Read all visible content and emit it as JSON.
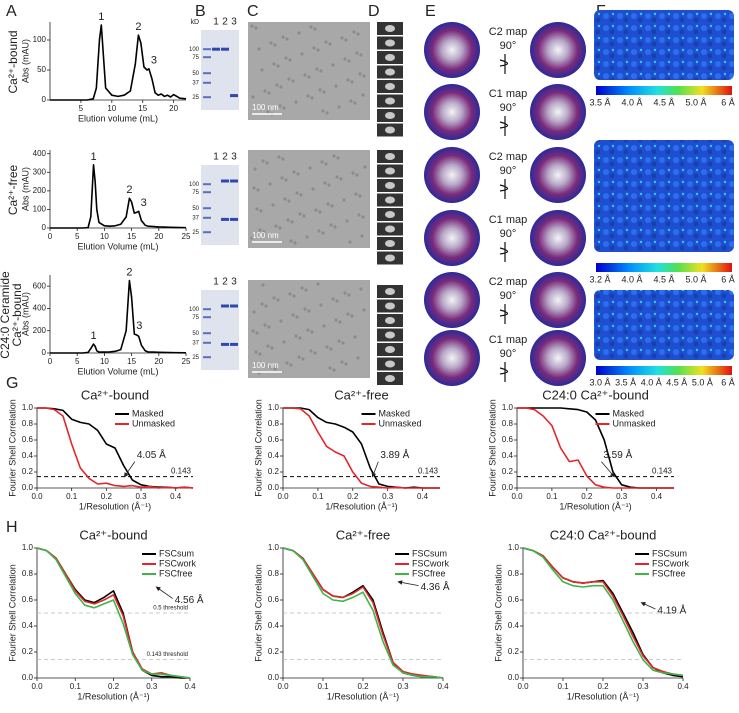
{
  "panel_letters": [
    "A",
    "B",
    "C",
    "D",
    "E",
    "F",
    "G",
    "H"
  ],
  "row_labels": [
    [
      "Ca²⁺-bound"
    ],
    [
      "Ca²⁺-free"
    ],
    [
      "C24:0 Ceramide",
      "Ca²⁺-bound"
    ]
  ],
  "gels": [
    {
      "unit": "kD",
      "lanes": [
        "1",
        "2",
        "3"
      ],
      "markers": [
        "100",
        "75",
        "50",
        "37",
        "25"
      ]
    },
    {
      "lanes": [
        "1",
        "2",
        "3"
      ],
      "markers": [
        "100",
        "75",
        "50",
        "37",
        "25"
      ]
    },
    {
      "lanes": [
        "1",
        "2",
        "3"
      ],
      "markers": [
        "100",
        "75",
        "50",
        "37",
        "25"
      ]
    }
  ],
  "micrograph_scale_bars": [
    "100 nm",
    "100 nm",
    "100 nm"
  ],
  "map_views": [
    {
      "symmetry": "C2 map",
      "rotation": "90°"
    },
    {
      "symmetry": "C1 map",
      "rotation": "90°"
    },
    {
      "symmetry": "C2 map",
      "rotation": "90°"
    },
    {
      "symmetry": "C1 map",
      "rotation": "90°"
    },
    {
      "symmetry": "C2 map",
      "rotation": "90°"
    },
    {
      "symmetry": "C1 map",
      "rotation": "90°"
    }
  ],
  "colorbars": [
    [
      "3.5 Å",
      "4.0 Å",
      "4.5 Å",
      "5.0 Å",
      "6 Å"
    ],
    [
      "3.2 Å",
      "4.0 Å",
      "4.5 Å",
      "5.0 Å",
      "6 Å"
    ],
    [
      "3.0 Å",
      "3.5 Å",
      "4.0 Å",
      "4.5 Å",
      "5.0 Å",
      "6 Å"
    ]
  ],
  "chart_data": [
    {
      "type": "line",
      "xlabel": "Elution volume (mL)",
      "ylabel": "Abs (mAU)",
      "xlim": [
        0,
        22
      ],
      "xticks": [
        5,
        10,
        15,
        20
      ],
      "ylim": [
        0,
        130
      ],
      "yticks": [
        0,
        50,
        100
      ],
      "x": [
        0,
        2,
        4,
        6,
        7,
        7.5,
        8,
        8.3,
        8.6,
        9,
        10,
        11,
        12,
        13,
        13.8,
        14.3,
        14.7,
        15.2,
        15.7,
        16,
        16.5,
        17,
        17.5,
        18,
        18.5,
        19,
        19.5,
        20,
        21,
        22
      ],
      "series": [
        {
          "color": "#000000",
          "values": [
            0,
            0,
            0,
            0,
            2,
            20,
            100,
            125,
            80,
            20,
            8,
            6,
            8,
            15,
            60,
            108,
            95,
            55,
            50,
            52,
            35,
            12,
            8,
            10,
            6,
            8,
            5,
            9,
            3,
            2
          ]
        }
      ],
      "peak_labels": [
        "1",
        "2",
        "3"
      ]
    },
    {
      "type": "line",
      "xlabel": "Elution Volume (mL)",
      "ylabel": "Abs (mAU)",
      "xlim": [
        0,
        25
      ],
      "xticks": [
        0,
        5,
        10,
        15,
        20,
        25
      ],
      "ylim": [
        0,
        420
      ],
      "yticks": [
        0,
        100,
        200,
        300,
        400
      ],
      "x": [
        0,
        2,
        4,
        6,
        7,
        7.5,
        8,
        8.3,
        8.6,
        9,
        10,
        11,
        12,
        13,
        14,
        14.6,
        15,
        15.5,
        16,
        16.3,
        16.8,
        17.5,
        18,
        19,
        20,
        21,
        22,
        23,
        25
      ],
      "series": [
        {
          "color": "#000000",
          "values": [
            0,
            0,
            0,
            0,
            2,
            60,
            340,
            250,
            100,
            30,
            12,
            10,
            12,
            20,
            60,
            160,
            140,
            80,
            85,
            90,
            40,
            15,
            10,
            8,
            6,
            5,
            4,
            3,
            2
          ]
        }
      ],
      "peak_labels": [
        "1",
        "2",
        "3"
      ]
    },
    {
      "type": "line",
      "xlabel": "Elution Volume (mL)",
      "ylabel": "Abs (mAU)",
      "xlim": [
        0,
        25
      ],
      "xticks": [
        0,
        5,
        10,
        15,
        20,
        25
      ],
      "ylim": [
        0,
        700
      ],
      "yticks": [
        0,
        200,
        400,
        600
      ],
      "x": [
        0,
        2,
        4,
        6,
        7,
        7.5,
        8,
        8.3,
        8.6,
        9,
        10,
        11,
        12,
        13,
        14,
        14.6,
        15,
        15.5,
        16,
        16.3,
        16.8,
        17.5,
        18,
        19,
        20,
        21,
        22,
        23,
        25
      ],
      "series": [
        {
          "color": "#000000",
          "values": [
            0,
            0,
            0,
            0,
            5,
            40,
            80,
            60,
            20,
            8,
            8,
            10,
            15,
            30,
            200,
            650,
            500,
            170,
            160,
            150,
            70,
            20,
            10,
            8,
            6,
            5,
            4,
            3,
            2
          ]
        }
      ],
      "peak_labels": [
        "1",
        "2",
        "3"
      ]
    },
    {
      "type": "line",
      "title": "Ca²⁺-bound",
      "xlabel": "1/Resolution (Å⁻¹)",
      "ylabel": "Fourier Shell Correlation",
      "xlim": [
        0,
        0.45
      ],
      "xticks": [
        {
          "value": 0,
          "label": "0.0"
        },
        0.1,
        0.2,
        0.3,
        0.4
      ],
      "ylim": [
        0,
        1
      ],
      "yticks": [
        {
          "value": 0,
          "label": "0.0"
        },
        0.2,
        0.4,
        0.6,
        0.8,
        {
          "value": 1,
          "label": "1.0"
        }
      ],
      "x": [
        0,
        0.025,
        0.05,
        0.075,
        0.1,
        0.125,
        0.15,
        0.175,
        0.2,
        0.225,
        0.25,
        0.275,
        0.3,
        0.325,
        0.35,
        0.375,
        0.4,
        0.425,
        0.45
      ],
      "series": [
        {
          "name": "Masked",
          "color": "#000000",
          "values": [
            1,
            1,
            0.99,
            0.97,
            0.86,
            0.82,
            0.8,
            0.72,
            0.55,
            0.5,
            0.28,
            0.1,
            0.04,
            0.02,
            0.01,
            0.01,
            0,
            0.01,
            0
          ]
        },
        {
          "name": "Unmasked",
          "color": "#e3262b",
          "values": [
            1,
            1,
            0.98,
            0.9,
            0.55,
            0.25,
            0.12,
            0.05,
            0.06,
            0.03,
            0.02,
            0.03,
            0.01,
            0.02,
            0,
            0.01,
            0,
            0.01,
            0
          ]
        }
      ],
      "threshold": 0.143,
      "annotation": "4.05 Å"
    },
    {
      "type": "line",
      "title": "Ca²⁺-free",
      "xlabel": "1/Resolution (Å⁻¹)",
      "ylabel": "Fourier Shell Correlation",
      "xlim": [
        0,
        0.45
      ],
      "xticks": [
        {
          "value": 0,
          "label": "0.0"
        },
        0.1,
        0.2,
        0.3,
        0.4
      ],
      "ylim": [
        0,
        1
      ],
      "yticks": [
        {
          "value": 0,
          "label": "0.0"
        },
        0.2,
        0.4,
        0.6,
        0.8,
        {
          "value": 1,
          "label": "1.0"
        }
      ],
      "x": [
        0,
        0.025,
        0.05,
        0.075,
        0.1,
        0.125,
        0.15,
        0.175,
        0.2,
        0.225,
        0.25,
        0.275,
        0.3,
        0.325,
        0.35,
        0.375,
        0.4,
        0.425,
        0.45
      ],
      "series": [
        {
          "name": "Masked",
          "color": "#000000",
          "values": [
            1,
            1,
            1,
            0.98,
            0.88,
            0.82,
            0.8,
            0.76,
            0.7,
            0.55,
            0.25,
            0.05,
            0.02,
            0.01,
            0,
            0.01,
            0,
            0,
            0
          ]
        },
        {
          "name": "Unmasked",
          "color": "#e3262b",
          "values": [
            1,
            1,
            0.99,
            0.9,
            0.7,
            0.52,
            0.45,
            0.4,
            0.2,
            0.06,
            0.02,
            0.01,
            0,
            0.01,
            0,
            0,
            0,
            0,
            0
          ]
        }
      ],
      "threshold": 0.143,
      "annotation": "3.89 Å"
    },
    {
      "type": "line",
      "title": "C24:0 Ca²⁺-bound",
      "xlabel": "1/Resolution (Å⁻¹)",
      "ylabel": "Fourier Shell Correlation",
      "xlim": [
        0,
        0.45
      ],
      "xticks": [
        {
          "value": 0,
          "label": "0.0"
        },
        0.1,
        0.2,
        0.3,
        0.4
      ],
      "ylim": [
        0,
        1
      ],
      "yticks": [
        {
          "value": 0,
          "label": "0.0"
        },
        0.2,
        0.4,
        0.6,
        0.8,
        {
          "value": 1,
          "label": "1.0"
        }
      ],
      "x": [
        0,
        0.025,
        0.05,
        0.075,
        0.1,
        0.125,
        0.15,
        0.175,
        0.2,
        0.225,
        0.25,
        0.275,
        0.3,
        0.325,
        0.35,
        0.375,
        0.4,
        0.425,
        0.45
      ],
      "series": [
        {
          "name": "Masked",
          "color": "#000000",
          "values": [
            1,
            1,
            1,
            1,
            1,
            1,
            0.99,
            0.98,
            0.95,
            0.85,
            0.6,
            0.2,
            0.04,
            0.01,
            0,
            0,
            0,
            0,
            0
          ]
        },
        {
          "name": "Unmasked",
          "color": "#e3262b",
          "values": [
            1,
            1,
            0.98,
            0.9,
            0.78,
            0.5,
            0.33,
            0.35,
            0.15,
            0.04,
            0.01,
            0,
            0,
            0,
            0,
            0,
            0,
            0,
            0
          ]
        }
      ],
      "threshold": 0.143,
      "annotation": "3.59 Å"
    },
    {
      "type": "line",
      "title": "Ca²⁺-bound",
      "xlabel": "1/Resolution (Å⁻¹)",
      "ylabel": "Fourier Shell Correlation",
      "xlim": [
        0,
        0.4
      ],
      "xticks": [
        {
          "value": 0,
          "label": "0.0"
        },
        0.1,
        0.2,
        0.3,
        0.4
      ],
      "ylim": [
        0,
        1
      ],
      "yticks": [
        {
          "value": 0,
          "label": "0.0"
        },
        0.2,
        0.4,
        0.6,
        0.8,
        {
          "value": 1,
          "label": "1.0"
        }
      ],
      "x": [
        0,
        0.025,
        0.05,
        0.075,
        0.1,
        0.125,
        0.15,
        0.175,
        0.2,
        0.225,
        0.25,
        0.275,
        0.3,
        0.325,
        0.35,
        0.375,
        0.4
      ],
      "series": [
        {
          "name": "FSCsum",
          "color": "#000000",
          "values": [
            1,
            0.98,
            0.92,
            0.8,
            0.68,
            0.6,
            0.58,
            0.62,
            0.67,
            0.5,
            0.2,
            0.06,
            0.02,
            0.01,
            0.01,
            0,
            0
          ]
        },
        {
          "name": "FSCwork",
          "color": "#e3262b",
          "values": [
            1,
            0.98,
            0.92,
            0.8,
            0.67,
            0.59,
            0.57,
            0.6,
            0.64,
            0.48,
            0.2,
            0.07,
            0.03,
            0.04,
            0.02,
            0.01,
            0
          ]
        },
        {
          "name": "FSCfree",
          "color": "#3db54a",
          "values": [
            1,
            0.98,
            0.91,
            0.78,
            0.65,
            0.56,
            0.54,
            0.57,
            0.6,
            0.42,
            0.18,
            0.06,
            0.03,
            0.03,
            0.02,
            0.01,
            0
          ]
        }
      ],
      "thresholds": [
        0.5,
        0.143
      ],
      "threshold_labels": [
        "0.5 threshold",
        "0.143 threshold"
      ],
      "annotation": "4.56 Å"
    },
    {
      "type": "line",
      "title": "Ca²⁺-free",
      "xlabel": "1/Resolution (Å⁻¹)",
      "ylabel": "Fourier Shell Correlation",
      "xlim": [
        0,
        0.4
      ],
      "xticks": [
        {
          "value": 0,
          "label": "0.0"
        },
        0.1,
        0.2,
        0.3,
        0.4
      ],
      "ylim": [
        0,
        1
      ],
      "yticks": [
        {
          "value": 0,
          "label": "0.0"
        },
        0.2,
        0.4,
        0.6,
        0.8,
        {
          "value": 1,
          "label": "1.0"
        }
      ],
      "x": [
        0,
        0.025,
        0.05,
        0.075,
        0.1,
        0.125,
        0.15,
        0.175,
        0.2,
        0.225,
        0.25,
        0.275,
        0.3,
        0.325,
        0.35,
        0.375,
        0.4
      ],
      "series": [
        {
          "name": "FSCsum",
          "color": "#000000",
          "values": [
            1,
            0.98,
            0.92,
            0.8,
            0.68,
            0.63,
            0.62,
            0.66,
            0.71,
            0.6,
            0.35,
            0.12,
            0.04,
            0.02,
            0.01,
            0.01,
            0
          ]
        },
        {
          "name": "FSCwork",
          "color": "#e3262b",
          "values": [
            1,
            0.98,
            0.92,
            0.8,
            0.68,
            0.63,
            0.62,
            0.65,
            0.7,
            0.58,
            0.33,
            0.12,
            0.05,
            0.03,
            0.02,
            0.01,
            0
          ]
        },
        {
          "name": "FSCfree",
          "color": "#3db54a",
          "values": [
            1,
            0.98,
            0.91,
            0.78,
            0.65,
            0.6,
            0.59,
            0.62,
            0.66,
            0.52,
            0.28,
            0.1,
            0.04,
            0.02,
            0.01,
            0.01,
            0
          ]
        }
      ],
      "thresholds": [
        0.5,
        0.143
      ],
      "annotation": "4.36 Å"
    },
    {
      "type": "line",
      "title": "C24:0 Ca²⁺-bound",
      "xlabel": "1/Resolution (Å⁻¹)",
      "ylabel": "Fourier Shell Correlation",
      "xlim": [
        0,
        0.4
      ],
      "xticks": [
        {
          "value": 0,
          "label": "0.0"
        },
        0.1,
        0.2,
        0.3,
        0.4
      ],
      "ylim": [
        0,
        1
      ],
      "yticks": [
        {
          "value": 0,
          "label": "0.0"
        },
        0.2,
        0.4,
        0.6,
        0.8,
        {
          "value": 1,
          "label": "1.0"
        }
      ],
      "x": [
        0,
        0.025,
        0.05,
        0.075,
        0.1,
        0.125,
        0.15,
        0.175,
        0.2,
        0.225,
        0.25,
        0.275,
        0.3,
        0.325,
        0.35,
        0.375,
        0.4
      ],
      "series": [
        {
          "name": "FSCsum",
          "color": "#000000",
          "values": [
            1,
            0.98,
            0.94,
            0.85,
            0.77,
            0.74,
            0.73,
            0.74,
            0.75,
            0.65,
            0.5,
            0.35,
            0.18,
            0.08,
            0.04,
            0.02,
            0.01
          ]
        },
        {
          "name": "FSCwork",
          "color": "#e3262b",
          "values": [
            1,
            0.98,
            0.94,
            0.85,
            0.77,
            0.74,
            0.73,
            0.74,
            0.74,
            0.63,
            0.48,
            0.32,
            0.17,
            0.08,
            0.05,
            0.03,
            0.02
          ]
        },
        {
          "name": "FSCfree",
          "color": "#3db54a",
          "values": [
            1,
            0.98,
            0.93,
            0.83,
            0.74,
            0.71,
            0.7,
            0.71,
            0.71,
            0.6,
            0.44,
            0.28,
            0.14,
            0.06,
            0.04,
            0.03,
            0.02
          ]
        }
      ],
      "thresholds": [
        0.5,
        0.143
      ],
      "annotation": "4.19 Å"
    }
  ]
}
